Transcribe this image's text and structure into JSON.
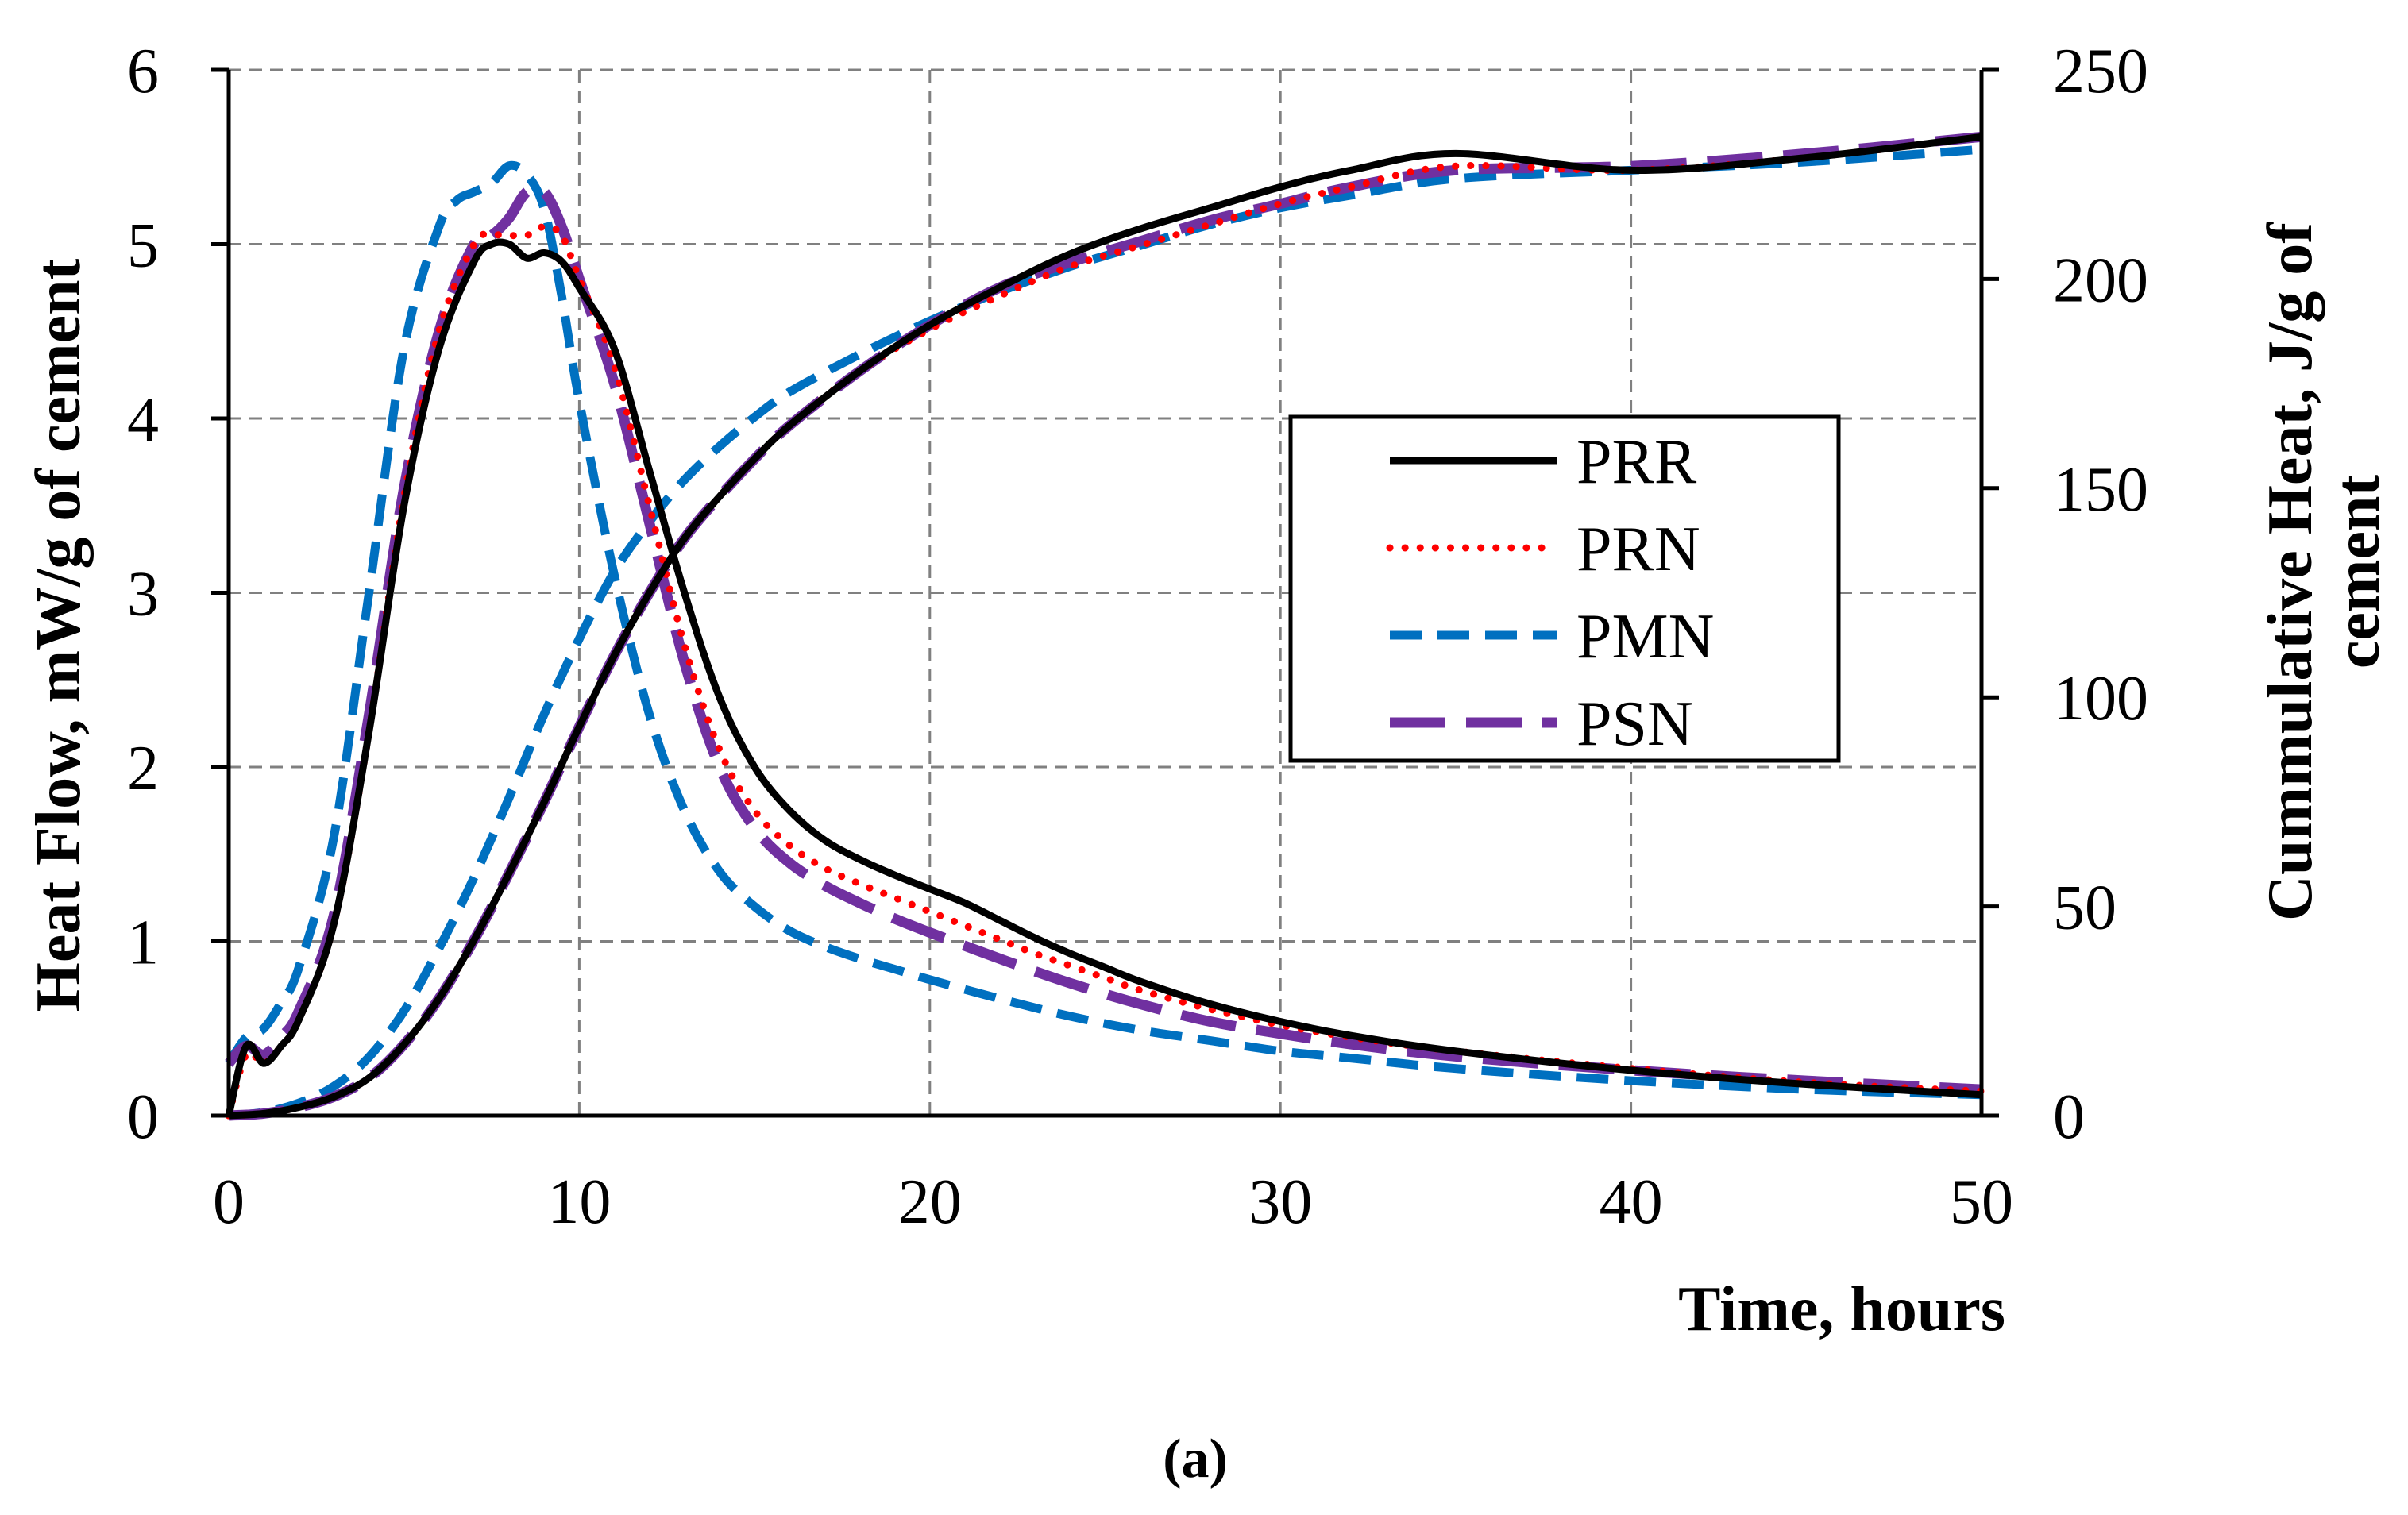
{
  "chart_data": {
    "type": "line",
    "caption": "(a)",
    "xlabel": "Time, hours",
    "ylabel_left": "Heat Flow, mW/g of cement",
    "ylabel_right_line1": "Cummulative Heat, J/g of",
    "ylabel_right_line2": "cement",
    "xlim": [
      0,
      50
    ],
    "ylim_left": [
      0,
      6
    ],
    "ylim_right": [
      0,
      250
    ],
    "x_ticks": [
      "0",
      "10",
      "20",
      "30",
      "40",
      "50"
    ],
    "y_left_ticks": [
      "0",
      "1",
      "2",
      "3",
      "4",
      "5",
      "6"
    ],
    "y_right_ticks": [
      "0",
      "50",
      "100",
      "150",
      "200",
      "250"
    ],
    "grid": true,
    "legend_position": "center-right",
    "series": [
      {
        "name": "PRR",
        "color": "#000000",
        "style": "solid",
        "heat_flow": {
          "x": [
            0,
            0.5,
            1,
            1.5,
            2,
            3,
            4,
            5,
            6,
            7,
            7.5,
            8,
            8.5,
            9,
            9.5,
            10,
            11,
            12,
            13,
            14,
            15,
            16,
            17,
            18,
            19,
            20,
            21,
            22,
            23,
            24,
            25,
            26,
            28,
            30,
            32,
            35,
            40,
            45,
            50
          ],
          "y": [
            0,
            0.4,
            0.3,
            0.4,
            0.55,
            1.1,
            2.2,
            3.5,
            4.4,
            4.9,
            5.0,
            5.0,
            4.92,
            4.95,
            4.9,
            4.75,
            4.4,
            3.7,
            3.0,
            2.4,
            2.0,
            1.75,
            1.58,
            1.47,
            1.38,
            1.3,
            1.22,
            1.12,
            1.02,
            0.93,
            0.85,
            0.77,
            0.64,
            0.54,
            0.46,
            0.37,
            0.26,
            0.18,
            0.12
          ]
        },
        "cumulative_heat": {
          "x": [
            0,
            1,
            2,
            3,
            4,
            5,
            6,
            7,
            8,
            9,
            10,
            11,
            12,
            13,
            14,
            15,
            16,
            18,
            20,
            22,
            24,
            26,
            28,
            30,
            32,
            35,
            40,
            45,
            50
          ],
          "y": [
            0,
            0.5,
            2,
            4.5,
            9,
            17,
            28,
            42,
            58,
            75,
            93,
            110,
            125,
            138,
            148,
            157,
            165,
            178,
            189,
            198,
            206,
            212,
            217,
            222,
            226,
            230,
            226,
            229,
            234
          ]
        }
      },
      {
        "name": "PRN",
        "color": "#ff0000",
        "style": "dotted",
        "heat_flow": {
          "x": [
            0,
            0.5,
            1,
            1.5,
            2,
            3,
            4,
            5,
            6,
            7,
            7.5,
            8,
            8.5,
            9,
            9.5,
            10,
            11,
            12,
            13,
            14,
            15,
            16,
            17,
            18,
            19,
            20,
            21,
            22,
            23,
            24,
            25,
            26,
            28,
            30,
            32,
            35,
            40,
            45,
            50
          ],
          "y": [
            0,
            0.35,
            0.3,
            0.4,
            0.55,
            1.1,
            2.2,
            3.55,
            4.5,
            5.0,
            5.05,
            5.05,
            5.05,
            5.1,
            5.05,
            4.8,
            4.3,
            3.5,
            2.7,
            2.1,
            1.75,
            1.55,
            1.42,
            1.33,
            1.25,
            1.17,
            1.09,
            1.01,
            0.93,
            0.86,
            0.79,
            0.72,
            0.61,
            0.52,
            0.45,
            0.37,
            0.27,
            0.19,
            0.14
          ]
        },
        "cumulative_heat": {
          "x": [
            0,
            1,
            2,
            3,
            4,
            5,
            6,
            7,
            8,
            9,
            10,
            11,
            12,
            13,
            14,
            15,
            16,
            18,
            20,
            22,
            24,
            26,
            28,
            30,
            32,
            35,
            40,
            45,
            50
          ],
          "y": [
            0,
            0.5,
            2,
            4.5,
            9,
            17,
            28,
            42,
            58,
            75,
            93,
            110,
            125,
            138,
            148,
            157,
            165,
            178,
            188,
            196,
            203,
            208,
            213,
            218,
            222,
            227,
            226,
            229,
            234
          ]
        }
      },
      {
        "name": "PMN",
        "color": "#0070c0",
        "style": "dashed",
        "heat_flow": {
          "x": [
            0,
            0.5,
            1,
            1.5,
            2,
            3,
            4,
            5,
            6,
            6.5,
            7,
            7.5,
            8,
            8.5,
            9,
            9.5,
            10,
            11,
            12,
            13,
            14,
            15,
            16,
            17,
            18,
            19,
            20,
            22,
            24,
            26,
            28,
            30,
            32,
            35,
            40,
            45,
            50
          ],
          "y": [
            0.3,
            0.45,
            0.5,
            0.65,
            0.85,
            1.6,
            3.0,
            4.4,
            5.1,
            5.25,
            5.3,
            5.35,
            5.45,
            5.4,
            5.2,
            4.7,
            4.1,
            3.1,
            2.3,
            1.75,
            1.4,
            1.2,
            1.06,
            0.97,
            0.9,
            0.84,
            0.78,
            0.67,
            0.57,
            0.49,
            0.43,
            0.37,
            0.33,
            0.27,
            0.2,
            0.15,
            0.12
          ]
        },
        "cumulative_heat": {
          "x": [
            0,
            1,
            2,
            3,
            4,
            5,
            6,
            7,
            8,
            9,
            10,
            11,
            12,
            13,
            14,
            15,
            16,
            18,
            20,
            22,
            24,
            26,
            28,
            30,
            32,
            35,
            40,
            45,
            50
          ],
          "y": [
            0,
            0.8,
            3,
            7,
            14,
            25,
            40,
            57,
            76,
            96,
            114,
            130,
            142,
            152,
            160,
            167,
            173,
            182,
            190,
            197,
            203,
            208,
            213,
            217,
            220,
            224,
            226,
            228,
            231
          ]
        }
      },
      {
        "name": "PSN",
        "color": "#7030a0",
        "style": "long-dash",
        "heat_flow": {
          "x": [
            0,
            0.5,
            1,
            1.5,
            2,
            3,
            4,
            5,
            6,
            7,
            7.5,
            8,
            8.5,
            9,
            9.5,
            10,
            11,
            12,
            13,
            14,
            15,
            16,
            17,
            18,
            19,
            20,
            22,
            24,
            26,
            28,
            30,
            32,
            35,
            40,
            45,
            50
          ],
          "y": [
            0.3,
            0.4,
            0.35,
            0.45,
            0.6,
            1.15,
            2.3,
            3.6,
            4.5,
            5.0,
            5.05,
            5.15,
            5.3,
            5.3,
            5.1,
            4.8,
            4.2,
            3.4,
            2.6,
            2.0,
            1.65,
            1.45,
            1.32,
            1.22,
            1.13,
            1.05,
            0.9,
            0.76,
            0.64,
            0.54,
            0.47,
            0.41,
            0.34,
            0.26,
            0.2,
            0.15
          ]
        },
        "cumulative_heat": {
          "x": [
            0,
            1,
            2,
            3,
            4,
            5,
            6,
            7,
            8,
            9,
            10,
            11,
            12,
            13,
            14,
            15,
            16,
            18,
            20,
            22,
            24,
            26,
            28,
            30,
            32,
            35,
            40,
            45,
            50
          ],
          "y": [
            0,
            0.5,
            2,
            4.5,
            9,
            17,
            28,
            42,
            58,
            75,
            93,
            110,
            125,
            138,
            148,
            157,
            165,
            178,
            189,
            198,
            204,
            209,
            214,
            218,
            222,
            226,
            227,
            230,
            234
          ]
        }
      }
    ]
  }
}
